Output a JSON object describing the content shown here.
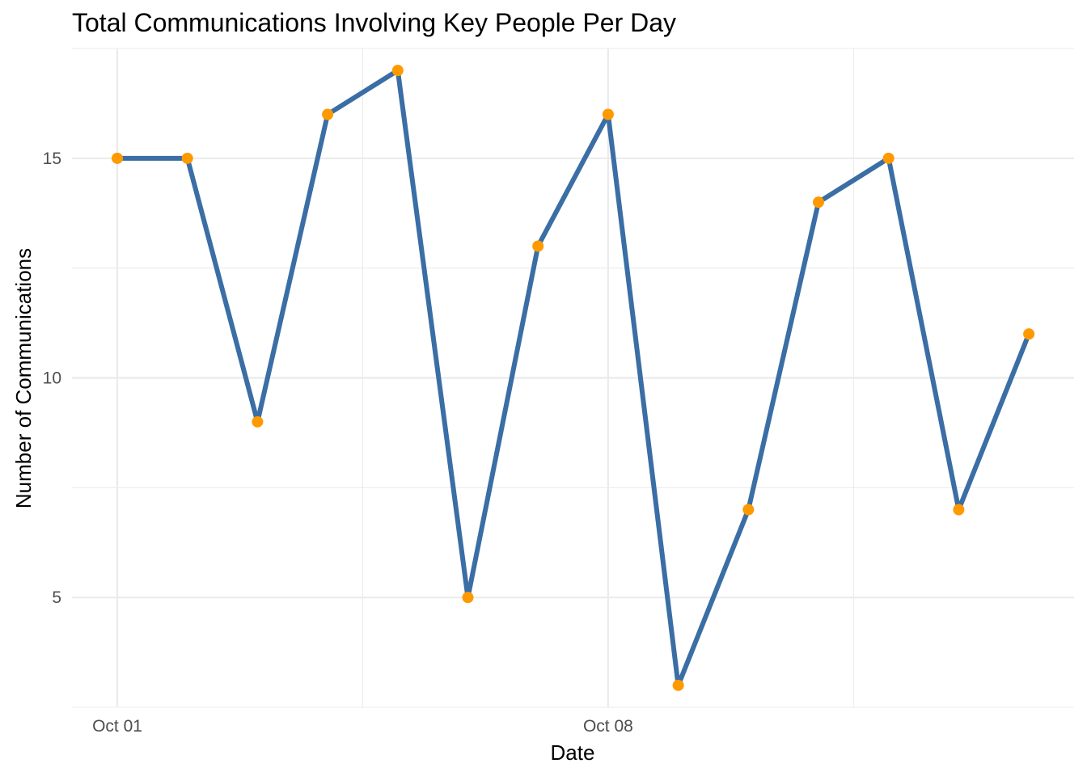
{
  "chart_data": {
    "type": "line",
    "title": "Total Communications Involving Key People Per Day",
    "xlabel": "Date",
    "ylabel": "Number of Communications",
    "x": [
      "2024-10-01",
      "2024-10-02",
      "2024-10-03",
      "2024-10-04",
      "2024-10-05",
      "2024-10-06",
      "2024-10-07",
      "2024-10-08",
      "2024-10-09",
      "2024-10-10",
      "2024-10-11",
      "2024-10-12",
      "2024-10-13",
      "2024-10-14"
    ],
    "series": [
      {
        "values": [
          15,
          15,
          9,
          16,
          17,
          5,
          13,
          16,
          3,
          7,
          14,
          15,
          7,
          11
        ]
      }
    ],
    "x_ticks": [
      {
        "value": "2024-10-01",
        "label": "Oct 01"
      },
      {
        "value": "2024-10-08",
        "label": "Oct 08"
      }
    ],
    "y_ticks": [
      5,
      10,
      15
    ],
    "ylim": [
      2.5,
      17.5
    ],
    "grid": true,
    "legend": "none",
    "colors": {
      "line": "#3a6ea5",
      "points": "#ff9900"
    }
  }
}
